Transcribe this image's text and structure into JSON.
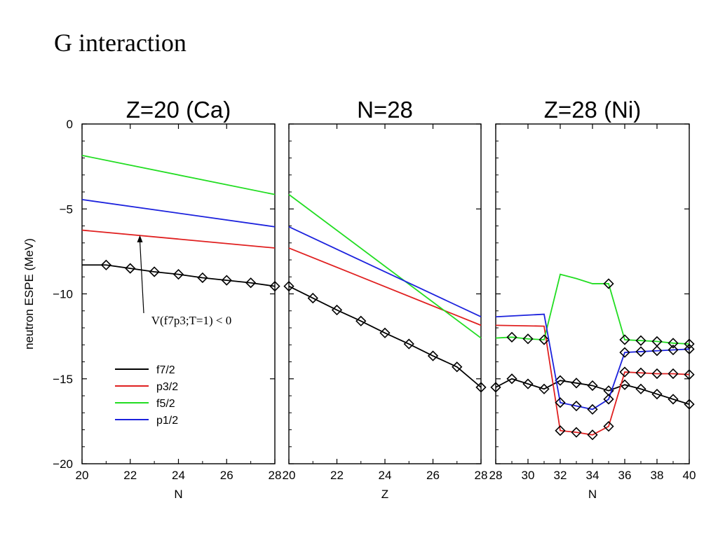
{
  "slide": {
    "title": "G interaction"
  },
  "chart_data": {
    "type": "line",
    "ylabel": "neutron ESPE (MeV)",
    "ylim": [
      -20,
      0
    ],
    "yticks": [
      0,
      -5,
      -10,
      -15,
      -20
    ],
    "ytick_labels": [
      "0",
      "−5",
      "−10",
      "−15",
      "−20"
    ],
    "grid": false,
    "legend": {
      "placement": "bottom-left of first panel",
      "entries": [
        {
          "label": "f7/2",
          "color": "#000000"
        },
        {
          "label": "p3/2",
          "color": "#e02020"
        },
        {
          "label": "f5/2",
          "color": "#22dd22"
        },
        {
          "label": "p1/2",
          "color": "#1c22dd"
        }
      ]
    },
    "panels": [
      {
        "title": "Z=20 (Ca)",
        "xlabel": "N",
        "xlim": [
          20,
          28
        ],
        "xticks": [
          20,
          22,
          24,
          26,
          28
        ],
        "xtick_labels": [
          "20",
          "22",
          "24",
          "26",
          "28"
        ],
        "series": [
          {
            "name": "f7/2",
            "color": "#000000",
            "x": [
              20,
              21,
              22,
              23,
              24,
              25,
              26,
              27,
              28
            ],
            "y": [
              -8.3,
              -8.3,
              -8.5,
              -8.7,
              -8.85,
              -9.05,
              -9.2,
              -9.35,
              -9.55
            ],
            "markers": [
              21,
              22,
              23,
              24,
              25,
              26,
              27,
              28
            ]
          },
          {
            "name": "p3/2",
            "color": "#e02020",
            "x": [
              20,
              28
            ],
            "y": [
              -6.25,
              -7.3
            ],
            "markers": []
          },
          {
            "name": "f5/2",
            "color": "#22dd22",
            "x": [
              20,
              28
            ],
            "y": [
              -1.85,
              -4.15
            ],
            "markers": []
          },
          {
            "name": "p1/2",
            "color": "#1c22dd",
            "x": [
              20,
              28
            ],
            "y": [
              -4.45,
              -6.05
            ],
            "markers": []
          }
        ],
        "annotation": {
          "text": "V(f7p3;T=1) < 0",
          "x": 22.4,
          "y": -6.55
        }
      },
      {
        "title": "N=28",
        "xlabel": "Z",
        "xlim": [
          20,
          28
        ],
        "xticks": [
          20,
          22,
          24,
          26,
          28
        ],
        "xtick_labels": [
          "20",
          "22",
          "24",
          "26",
          "28"
        ],
        "series": [
          {
            "name": "f7/2",
            "color": "#000000",
            "x": [
              20,
              21,
              22,
              23,
              24,
              25,
              26,
              27,
              28
            ],
            "y": [
              -9.55,
              -10.25,
              -10.95,
              -11.6,
              -12.3,
              -12.95,
              -13.65,
              -14.3,
              -15.5
            ],
            "markers": [
              20,
              21,
              22,
              23,
              24,
              25,
              26,
              27,
              28
            ]
          },
          {
            "name": "p3/2",
            "color": "#e02020",
            "x": [
              20,
              28
            ],
            "y": [
              -7.3,
              -11.85
            ],
            "markers": []
          },
          {
            "name": "f5/2",
            "color": "#22dd22",
            "x": [
              20,
              28
            ],
            "y": [
              -4.15,
              -12.6
            ],
            "markers": []
          },
          {
            "name": "p1/2",
            "color": "#1c22dd",
            "x": [
              20,
              28
            ],
            "y": [
              -6.05,
              -11.35
            ],
            "markers": []
          }
        ]
      },
      {
        "title": "Z=28 (Ni)",
        "xlabel": "N",
        "xlim": [
          28,
          40
        ],
        "xticks": [
          28,
          30,
          32,
          34,
          36,
          38,
          40
        ],
        "xtick_labels": [
          "28",
          "30",
          "32",
          "34",
          "36",
          "38",
          "40"
        ],
        "series": [
          {
            "name": "f7/2",
            "color": "#000000",
            "x": [
              28,
              29,
              30,
              31,
              32,
              33,
              34,
              35,
              36,
              37,
              38,
              39,
              40
            ],
            "y": [
              -15.5,
              -15.0,
              -15.3,
              -15.6,
              -15.1,
              -15.25,
              -15.4,
              -15.7,
              -15.35,
              -15.6,
              -15.9,
              -16.2,
              -16.5
            ],
            "markers": [
              28,
              29,
              30,
              31,
              32,
              33,
              34,
              35,
              36,
              37,
              38,
              39,
              40
            ]
          },
          {
            "name": "p3/2",
            "color": "#e02020",
            "x": [
              28,
              31,
              32,
              33,
              34,
              35,
              36,
              37,
              38,
              39,
              40
            ],
            "y": [
              -11.85,
              -11.9,
              -18.05,
              -18.15,
              -18.3,
              -17.8,
              -14.6,
              -14.65,
              -14.7,
              -14.7,
              -14.75
            ],
            "markers": [
              32,
              33,
              34,
              35,
              36,
              37,
              38,
              39,
              40
            ]
          },
          {
            "name": "f5/2",
            "color": "#22dd22",
            "x": [
              28,
              29,
              30,
              31,
              32,
              33,
              34,
              35,
              36,
              37,
              38,
              39,
              40
            ],
            "y": [
              -12.6,
              -12.55,
              -12.65,
              -12.7,
              -8.85,
              -9.1,
              -9.4,
              -9.4,
              -12.7,
              -12.75,
              -12.8,
              -12.9,
              -12.95
            ],
            "markers": [
              29,
              30,
              31,
              35,
              36,
              37,
              38,
              39,
              40
            ]
          },
          {
            "name": "p1/2",
            "color": "#1c22dd",
            "x": [
              28,
              31,
              32,
              33,
              34,
              35,
              36,
              37,
              38,
              39,
              40
            ],
            "y": [
              -11.35,
              -11.2,
              -16.4,
              -16.6,
              -16.8,
              -16.2,
              -13.45,
              -13.4,
              -13.35,
              -13.3,
              -13.25
            ],
            "markers": [
              32,
              33,
              34,
              35,
              36,
              37,
              38,
              39,
              40
            ]
          }
        ]
      }
    ]
  }
}
